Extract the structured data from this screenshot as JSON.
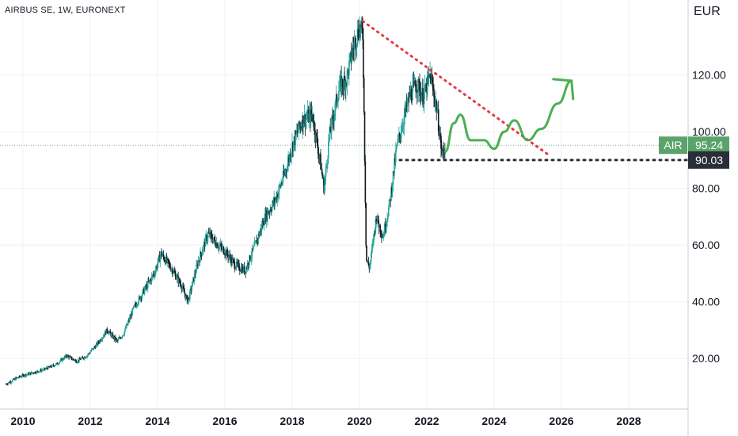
{
  "header": {
    "title": "AIRBUS SE, 1W, EURONEXT",
    "currency": "EUR"
  },
  "price_axis": {
    "ticks": [
      "20.00",
      "40.00",
      "60.00",
      "80.00",
      "100.00",
      "120.00"
    ],
    "tick_values": [
      20,
      40,
      60,
      80,
      100,
      120
    ]
  },
  "time_axis": {
    "ticks": [
      "2010",
      "2012",
      "2014",
      "2016",
      "2018",
      "2020",
      "2022",
      "2024",
      "2026",
      "2028"
    ],
    "tick_years": [
      2010,
      2012,
      2014,
      2016,
      2018,
      2020,
      2022,
      2024,
      2026,
      2028
    ]
  },
  "badges": {
    "symbol": "AIR",
    "last_price": "95.24",
    "support_price": "90.03"
  },
  "colors": {
    "candle_up": "#26a69a",
    "candle_down": "#131722",
    "last_price_badge": "#5aa46b",
    "support_badge": "#2a2e39",
    "trendline": "#e53945",
    "forecast": "#4caf50",
    "grid": "#eef0f3"
  },
  "chart_data": {
    "type": "candlestick",
    "title": "AIRBUS SE, 1W, EURONEXT",
    "ylabel": "EUR",
    "ylim": [
      0,
      142
    ],
    "xlim": [
      2009.5,
      2029.9
    ],
    "grid": true,
    "last_price": 95.24,
    "support_level": 90.03,
    "price_path": [
      [
        2009.5,
        11
      ],
      [
        2009.8,
        13
      ],
      [
        2010.0,
        14
      ],
      [
        2010.3,
        15
      ],
      [
        2010.6,
        16
      ],
      [
        2011.0,
        18
      ],
      [
        2011.3,
        21
      ],
      [
        2011.6,
        19
      ],
      [
        2011.9,
        21
      ],
      [
        2012.2,
        25
      ],
      [
        2012.5,
        30
      ],
      [
        2012.8,
        26
      ],
      [
        2013.0,
        29
      ],
      [
        2013.3,
        38
      ],
      [
        2013.6,
        44
      ],
      [
        2013.9,
        50
      ],
      [
        2014.1,
        57
      ],
      [
        2014.4,
        52
      ],
      [
        2014.7,
        46
      ],
      [
        2014.9,
        40
      ],
      [
        2015.2,
        54
      ],
      [
        2015.5,
        64
      ],
      [
        2015.8,
        60
      ],
      [
        2016.0,
        58
      ],
      [
        2016.3,
        53
      ],
      [
        2016.6,
        51
      ],
      [
        2016.9,
        60
      ],
      [
        2017.2,
        70
      ],
      [
        2017.5,
        76
      ],
      [
        2017.8,
        86
      ],
      [
        2018.0,
        95
      ],
      [
        2018.3,
        104
      ],
      [
        2018.6,
        106
      ],
      [
        2018.8,
        92
      ],
      [
        2018.95,
        80
      ],
      [
        2019.1,
        98
      ],
      [
        2019.4,
        116
      ],
      [
        2019.6,
        118
      ],
      [
        2019.8,
        129
      ],
      [
        2020.0,
        137
      ],
      [
        2020.1,
        134
      ],
      [
        2020.2,
        55
      ],
      [
        2020.3,
        52
      ],
      [
        2020.5,
        70
      ],
      [
        2020.7,
        63
      ],
      [
        2020.9,
        75
      ],
      [
        2021.1,
        94
      ],
      [
        2021.3,
        104
      ],
      [
        2021.5,
        113
      ],
      [
        2021.7,
        117
      ],
      [
        2021.9,
        112
      ],
      [
        2022.1,
        120
      ],
      [
        2022.3,
        108
      ],
      [
        2022.45,
        92
      ],
      [
        2022.55,
        95
      ]
    ],
    "trendline": {
      "from": [
        2020.1,
        139
      ],
      "to": [
        2025.6,
        92
      ]
    },
    "forecast_path": [
      [
        2022.55,
        93
      ],
      [
        2022.8,
        103
      ],
      [
        2023.0,
        106
      ],
      [
        2023.3,
        97
      ],
      [
        2023.7,
        97
      ],
      [
        2024.0,
        94
      ],
      [
        2024.3,
        100
      ],
      [
        2024.6,
        104
      ],
      [
        2025.0,
        97
      ],
      [
        2025.4,
        101
      ],
      [
        2025.9,
        110
      ],
      [
        2026.3,
        118
      ]
    ]
  }
}
